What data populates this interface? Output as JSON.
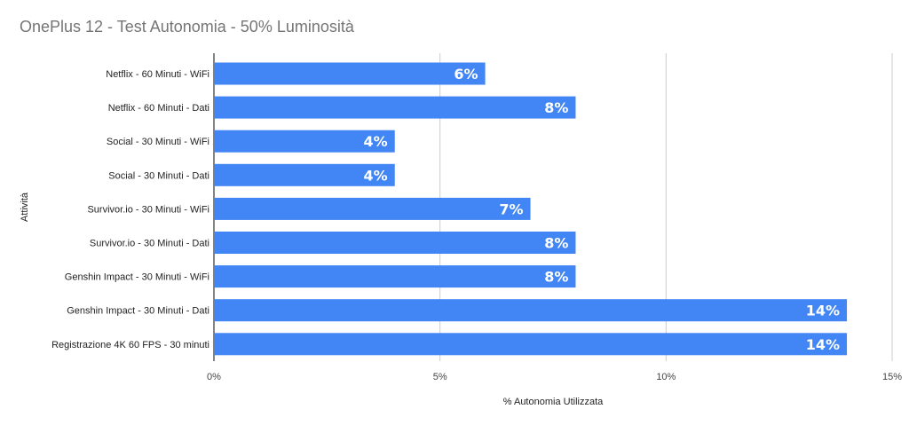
{
  "chart_data": {
    "type": "bar",
    "orientation": "horizontal",
    "title": "OnePlus 12 - Test Autonomia - 50% Luminosità",
    "xlabel": "% Autonomia Utilizzata",
    "ylabel": "Attività",
    "categories": [
      "Netflix - 60 Minuti - WiFi",
      "Netflix - 60 Minuti - Dati",
      "Social - 30 Minuti - WiFi",
      "Social - 30 Minuti - Dati",
      "Survivor.io - 30 Minuti - WiFi",
      "Survivor.io - 30 Minuti - Dati",
      "Genshin Impact - 30 Minuti - WiFi",
      "Genshin Impact - 30 Minuti - Dati",
      "Registrazione 4K 60 FPS - 30 minuti"
    ],
    "values": [
      6,
      8,
      4,
      4,
      7,
      8,
      8,
      14,
      14
    ],
    "data_labels": [
      "6%",
      "8%",
      "4%",
      "4%",
      "7%",
      "8%",
      "8%",
      "14%",
      "14%"
    ],
    "xlim": [
      0,
      15
    ],
    "xticks": [
      0,
      5,
      10,
      15
    ],
    "xtick_labels": [
      "0%",
      "5%",
      "10%",
      "15%"
    ],
    "grid": true,
    "legend": "none",
    "bar_color": "#4285f4",
    "grid_color": "#cccccc"
  }
}
